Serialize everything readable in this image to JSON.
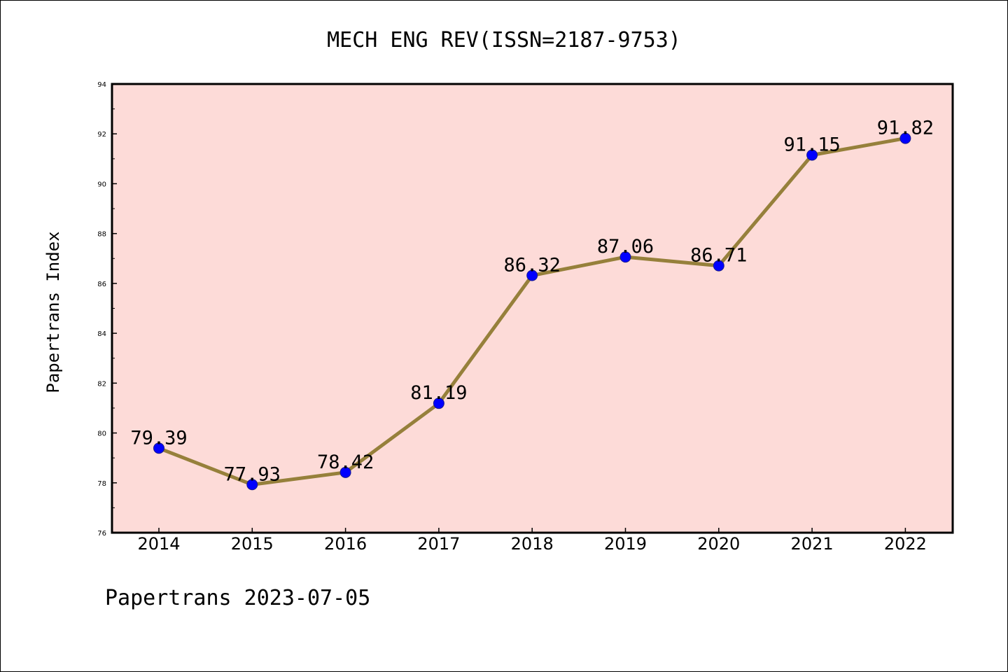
{
  "footer": {
    "text": "Papertrans 2023-07-05"
  },
  "chart_data": {
    "type": "line",
    "title": "MECH ENG REV(ISSN=2187-9753)",
    "xlabel": "",
    "ylabel": "Papertrans Index",
    "categories": [
      "2014",
      "2015",
      "2016",
      "2017",
      "2018",
      "2019",
      "2020",
      "2021",
      "2022"
    ],
    "values": [
      79.39,
      77.93,
      78.42,
      81.19,
      86.32,
      87.06,
      86.71,
      91.15,
      91.82
    ],
    "value_labels": [
      "79.39",
      "77.93",
      "78.42",
      "81.19",
      "86.32",
      "87.06",
      "86.71",
      "91.15",
      "91.82"
    ],
    "ylim": [
      76,
      94
    ],
    "yticks": [
      "76",
      "78",
      "80",
      "82",
      "84",
      "86",
      "88",
      "90",
      "92",
      "94"
    ],
    "grid": false,
    "legend": "none",
    "colors": {
      "plot_background": "#fddbd8",
      "line": "#96803b",
      "marker": "#0000ff",
      "axis": "#000000"
    }
  }
}
